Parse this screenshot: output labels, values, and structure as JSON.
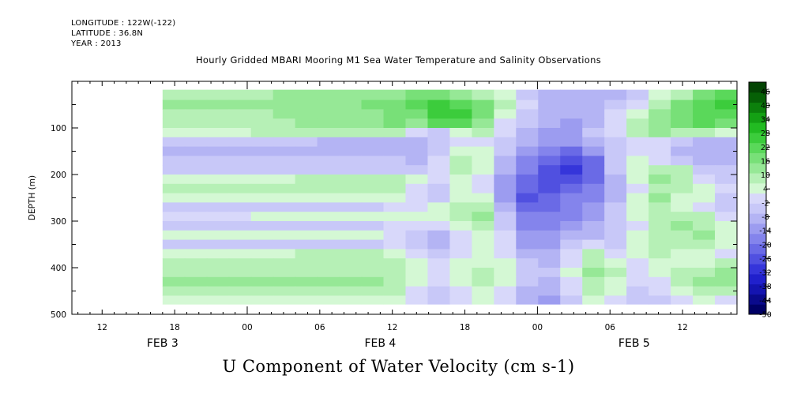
{
  "header": {
    "longitude": "LONGITUDE : 122W(-122)",
    "latitude": "LATITUDE : 36.8N",
    "year": "YEAR : 2013"
  },
  "footer": {
    "label": "U Component of Water Velocity (cm s-1)"
  },
  "chart_data": {
    "type": "heatmap",
    "title": "Hourly Gridded MBARI Mooring M1 Sea Water Temperature and Salinity Observations",
    "ylabel": "DEPTH (m)",
    "xlabel": "",
    "y_reversed": true,
    "ylim": [
      500,
      0
    ],
    "y_ticks": [
      100,
      200,
      300,
      400,
      500
    ],
    "x_range_hours": [
      -14.5,
      40.5
    ],
    "x_ticks": [
      {
        "hour": -12,
        "label": "12"
      },
      {
        "hour": -6,
        "label": "18"
      },
      {
        "hour": 0,
        "label": "00"
      },
      {
        "hour": 6,
        "label": "06"
      },
      {
        "hour": 12,
        "label": "12"
      },
      {
        "hour": 18,
        "label": "18"
      },
      {
        "hour": 24,
        "label": "00"
      },
      {
        "hour": 30,
        "label": "06"
      },
      {
        "hour": 36,
        "label": "12"
      }
    ],
    "date_labels": [
      {
        "hour": -7,
        "label": "FEB 3"
      },
      {
        "hour": 11,
        "label": "FEB 4"
      },
      {
        "hour": 32,
        "label": "FEB 5"
      }
    ],
    "data_extent": {
      "hour_start": -7,
      "depth_top": 18,
      "depth_bottom": 478
    },
    "colorbar": {
      "min": -50,
      "max": 50,
      "labels": [
        46,
        40,
        34,
        28,
        22,
        16,
        10,
        4,
        -2,
        -8,
        -14,
        -20,
        -26,
        -32,
        -38,
        -44,
        -50
      ],
      "colors_low_to_high": [
        "#000066",
        "#0a0a8c",
        "#1414b0",
        "#2020cc",
        "#3535da",
        "#5050e0",
        "#6a6ae6",
        "#8484ec",
        "#9c9cf0",
        "#b4b4f4",
        "#c8c8f8",
        "#d8d8fa",
        "#d4f8d4",
        "#b6f0b6",
        "#96e896",
        "#78e078",
        "#5ad85a",
        "#3ccc3c",
        "#22bb22",
        "#14a014",
        "#0c800c",
        "#066006",
        "#034403"
      ]
    },
    "rows": [
      {
        "depth": 30,
        "values": [
          10,
          10,
          10,
          10,
          10,
          11,
          11,
          12,
          12,
          13,
          14,
          16,
          18,
          14,
          10,
          4,
          -3,
          -8,
          -9,
          -10,
          -8,
          -3,
          4,
          10,
          16,
          22
        ]
      },
      {
        "depth": 50,
        "values": [
          12,
          12,
          12,
          12,
          12,
          13,
          13,
          14,
          15,
          16,
          18,
          20,
          24,
          22,
          16,
          8,
          -2,
          -8,
          -10,
          -10,
          -6,
          0,
          8,
          16,
          22,
          24
        ]
      },
      {
        "depth": 70,
        "values": [
          10,
          10,
          10,
          10,
          10,
          11,
          12,
          13,
          14,
          15,
          17,
          19,
          26,
          28,
          18,
          6,
          -4,
          -9,
          -10,
          -8,
          -2,
          4,
          12,
          18,
          22,
          20
        ]
      },
      {
        "depth": 90,
        "values": [
          8,
          8,
          8,
          8,
          9,
          10,
          11,
          12,
          13,
          14,
          16,
          14,
          20,
          22,
          12,
          2,
          -6,
          -10,
          -12,
          -8,
          0,
          8,
          14,
          18,
          20,
          18
        ]
      },
      {
        "depth": 110,
        "values": [
          6,
          6,
          6,
          6,
          7,
          8,
          8,
          9,
          10,
          10,
          8,
          2,
          -4,
          4,
          8,
          -2,
          -8,
          -12,
          -12,
          -6,
          2,
          8,
          12,
          10,
          8,
          4
        ]
      },
      {
        "depth": 130,
        "values": [
          -6,
          -6,
          -6,
          -6,
          -6,
          -6,
          -6,
          -7,
          -7,
          -7,
          -8,
          -10,
          -6,
          2,
          -2,
          -6,
          -10,
          -14,
          -14,
          -10,
          -4,
          2,
          0,
          -6,
          -8,
          -8
        ]
      },
      {
        "depth": 150,
        "values": [
          -7,
          -7,
          -7,
          -7,
          -7,
          -7,
          -7,
          -7,
          -8,
          -8,
          -8,
          -10,
          -4,
          6,
          4,
          -6,
          -14,
          -18,
          -20,
          -14,
          -4,
          2,
          -2,
          -8,
          -10,
          -9
        ]
      },
      {
        "depth": 170,
        "values": [
          -6,
          -6,
          -6,
          -6,
          -6,
          -6,
          -6,
          -6,
          -6,
          -6,
          -6,
          -8,
          -2,
          8,
          6,
          -8,
          -16,
          -22,
          -26,
          -20,
          -6,
          4,
          2,
          -4,
          -8,
          -8
        ]
      },
      {
        "depth": 190,
        "values": [
          -5,
          -5,
          -5,
          -5,
          -5,
          -5,
          -5,
          -5,
          -5,
          -5,
          -5,
          -6,
          0,
          8,
          4,
          -10,
          -18,
          -24,
          -30,
          -22,
          -6,
          6,
          10,
          8,
          -4,
          -6
        ]
      },
      {
        "depth": 210,
        "values": [
          6,
          6,
          6,
          6,
          6,
          6,
          7,
          7,
          7,
          7,
          8,
          4,
          -2,
          6,
          2,
          -12,
          -20,
          -24,
          -26,
          -20,
          -8,
          4,
          12,
          10,
          2,
          -4
        ]
      },
      {
        "depth": 230,
        "values": [
          7,
          7,
          7,
          7,
          7,
          7,
          7,
          8,
          8,
          8,
          8,
          2,
          -6,
          4,
          0,
          -14,
          -22,
          -24,
          -22,
          -18,
          -10,
          2,
          10,
          8,
          4,
          -2
        ]
      },
      {
        "depth": 250,
        "values": [
          4,
          4,
          4,
          4,
          4,
          4,
          4,
          5,
          5,
          5,
          4,
          -2,
          -4,
          6,
          4,
          -14,
          -24,
          -22,
          -18,
          -16,
          -10,
          4,
          12,
          6,
          4,
          -4
        ]
      },
      {
        "depth": 270,
        "values": [
          -3,
          -3,
          -3,
          -3,
          -3,
          -3,
          -3,
          -3,
          -3,
          -3,
          -2,
          2,
          4,
          8,
          10,
          -10,
          -20,
          -20,
          -18,
          -14,
          -6,
          6,
          10,
          4,
          2,
          -4
        ]
      },
      {
        "depth": 290,
        "values": [
          2,
          2,
          2,
          2,
          3,
          3,
          3,
          3,
          3,
          3,
          4,
          4,
          6,
          8,
          12,
          -6,
          -18,
          -18,
          -16,
          -12,
          -4,
          6,
          8,
          10,
          8,
          2
        ]
      },
      {
        "depth": 310,
        "values": [
          -4,
          -4,
          -4,
          -4,
          -4,
          -4,
          -4,
          -4,
          -4,
          -4,
          -2,
          0,
          -2,
          4,
          8,
          -6,
          -16,
          -16,
          -14,
          -10,
          -6,
          2,
          8,
          12,
          10,
          4
        ]
      },
      {
        "depth": 330,
        "values": [
          3,
          3,
          3,
          3,
          3,
          3,
          3,
          3,
          3,
          3,
          2,
          -4,
          -8,
          2,
          6,
          -2,
          -14,
          -14,
          -10,
          -8,
          -6,
          4,
          8,
          10,
          12,
          6
        ]
      },
      {
        "depth": 350,
        "values": [
          -3,
          -3,
          -3,
          -3,
          -3,
          -3,
          -3,
          -3,
          -3,
          -3,
          -2,
          -6,
          -10,
          -2,
          4,
          0,
          -12,
          -12,
          -6,
          0,
          -4,
          4,
          10,
          8,
          8,
          4
        ]
      },
      {
        "depth": 370,
        "values": [
          6,
          6,
          6,
          6,
          6,
          6,
          7,
          7,
          7,
          7,
          6,
          0,
          -4,
          0,
          4,
          2,
          -8,
          -10,
          0,
          8,
          2,
          4,
          8,
          6,
          4,
          2
        ]
      },
      {
        "depth": 390,
        "values": [
          8,
          8,
          8,
          8,
          8,
          8,
          8,
          8,
          8,
          8,
          8,
          4,
          -2,
          4,
          6,
          4,
          -6,
          -8,
          2,
          10,
          6,
          2,
          6,
          4,
          6,
          8
        ]
      },
      {
        "depth": 410,
        "values": [
          10,
          10,
          10,
          10,
          10,
          10,
          10,
          10,
          10,
          10,
          10,
          6,
          0,
          6,
          8,
          6,
          -4,
          -6,
          4,
          12,
          8,
          0,
          4,
          8,
          10,
          12
        ]
      },
      {
        "depth": 430,
        "values": [
          12,
          12,
          12,
          12,
          12,
          12,
          12,
          12,
          12,
          12,
          10,
          4,
          -2,
          4,
          8,
          4,
          -6,
          -8,
          2,
          10,
          6,
          -2,
          2,
          10,
          14,
          14
        ]
      },
      {
        "depth": 450,
        "values": [
          10,
          10,
          10,
          10,
          10,
          10,
          10,
          10,
          10,
          10,
          8,
          2,
          -4,
          2,
          6,
          2,
          -8,
          -10,
          0,
          8,
          4,
          -4,
          -2,
          6,
          10,
          8
        ]
      },
      {
        "depth": 470,
        "values": [
          6,
          6,
          6,
          6,
          6,
          6,
          6,
          6,
          6,
          6,
          4,
          -2,
          -6,
          -2,
          4,
          -2,
          -10,
          -12,
          -4,
          4,
          2,
          -6,
          -6,
          2,
          4,
          2
        ]
      }
    ]
  }
}
